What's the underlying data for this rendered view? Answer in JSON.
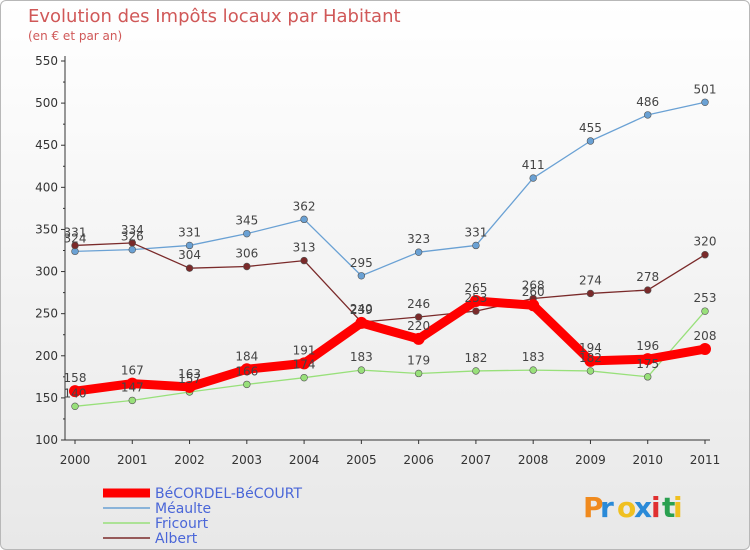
{
  "chart_data": {
    "type": "line",
    "title": "Evolution des Impôts locaux par Habitant",
    "subtitle": "(en € et par an)",
    "xlabel": "",
    "ylabel": "",
    "ylim": [
      100,
      550
    ],
    "yticks": [
      100,
      150,
      200,
      250,
      300,
      350,
      400,
      450,
      500,
      550
    ],
    "categories": [
      "2000",
      "2001",
      "2002",
      "2003",
      "2004",
      "2005",
      "2006",
      "2007",
      "2008",
      "2009",
      "2010",
      "2011"
    ],
    "grid": false,
    "legend_position": "bottom-left",
    "series": [
      {
        "name": "BéCORDEL-BéCOURT",
        "color": "#ff0000",
        "values": [
          158,
          167,
          163,
          184,
          191,
          239,
          220,
          265,
          260,
          194,
          196,
          208
        ]
      },
      {
        "name": "Méaulte",
        "color": "#6aa1d4",
        "values": [
          324,
          326,
          331,
          345,
          362,
          295,
          323,
          331,
          411,
          455,
          486,
          501
        ]
      },
      {
        "name": "Fricourt",
        "color": "#98e07a",
        "values": [
          140,
          147,
          157,
          166,
          174,
          183,
          179,
          182,
          183,
          182,
          175,
          253
        ]
      },
      {
        "name": "Albert",
        "color": "#7a2a2a",
        "values": [
          331,
          334,
          304,
          306,
          313,
          240,
          246,
          253,
          268,
          274,
          278,
          320
        ]
      }
    ]
  },
  "logo": {
    "letters": [
      "P",
      "r",
      "o",
      "x",
      "i",
      "t",
      "i"
    ],
    "colors": [
      "#f08a1e",
      "#2a8ad8",
      "#f0c020",
      "#2a8ad8",
      "#e03030",
      "#2aa050",
      "#f0c020"
    ]
  }
}
